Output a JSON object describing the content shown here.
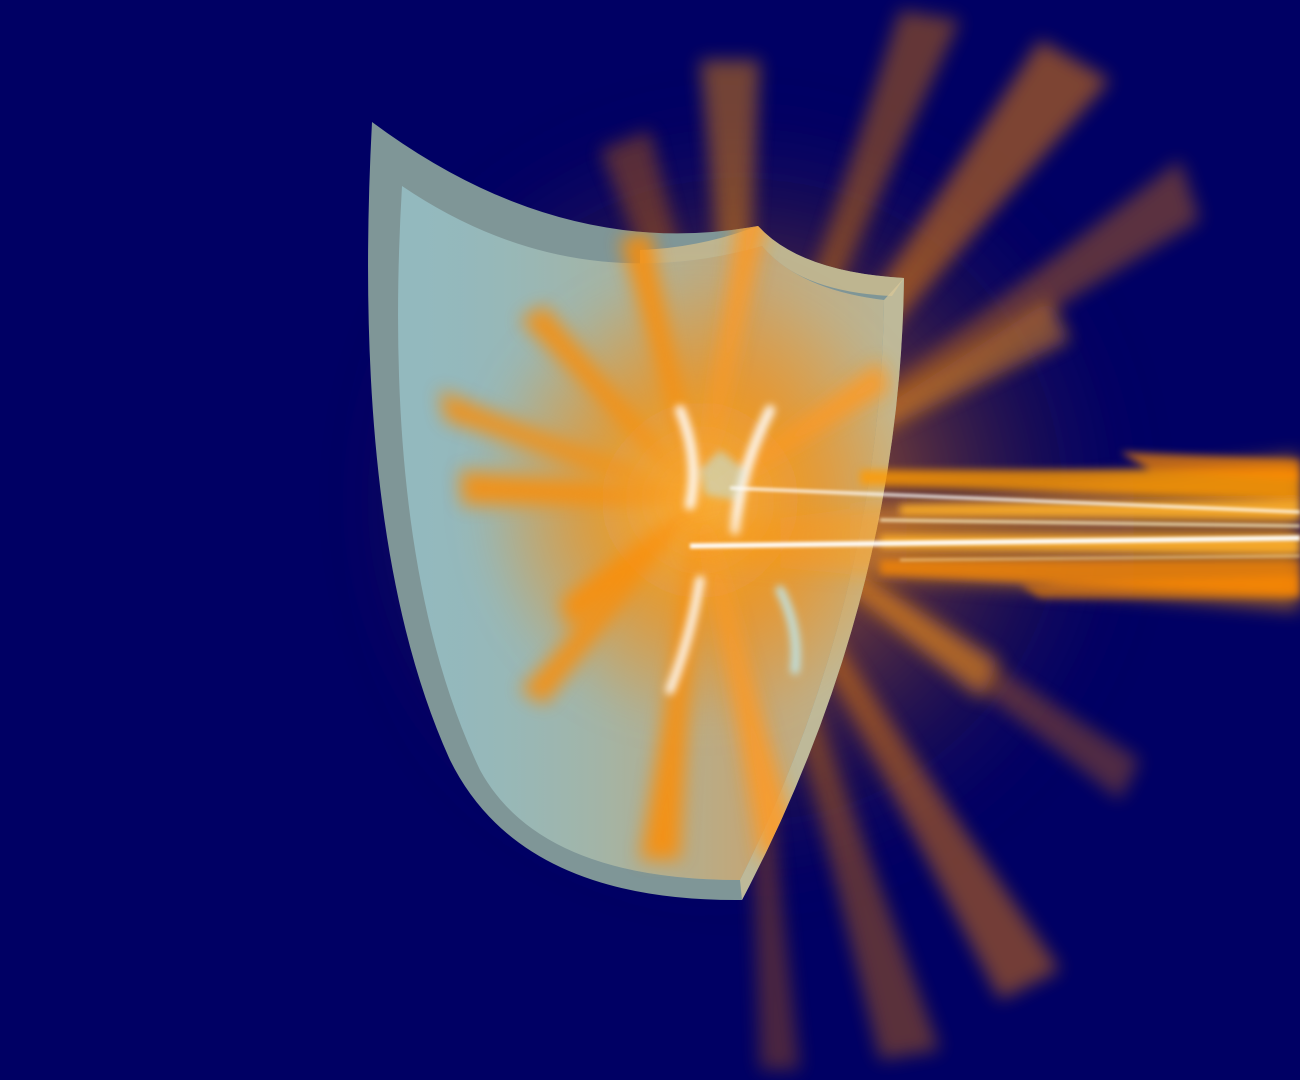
{
  "scene": {
    "subject": "shield-impact",
    "colors": {
      "background": "#000064",
      "shield_face": "#93b9be",
      "shield_rim": "#7f9697",
      "shield_rim_warm": "#c9bb8e",
      "glow": "#ff8a00",
      "glow_hot": "#ffb02a",
      "beam_core": "#ffffff"
    },
    "icons": {
      "shield": "shield-icon",
      "explosion": "burst-icon",
      "beam": "energy-beam-icon"
    }
  }
}
